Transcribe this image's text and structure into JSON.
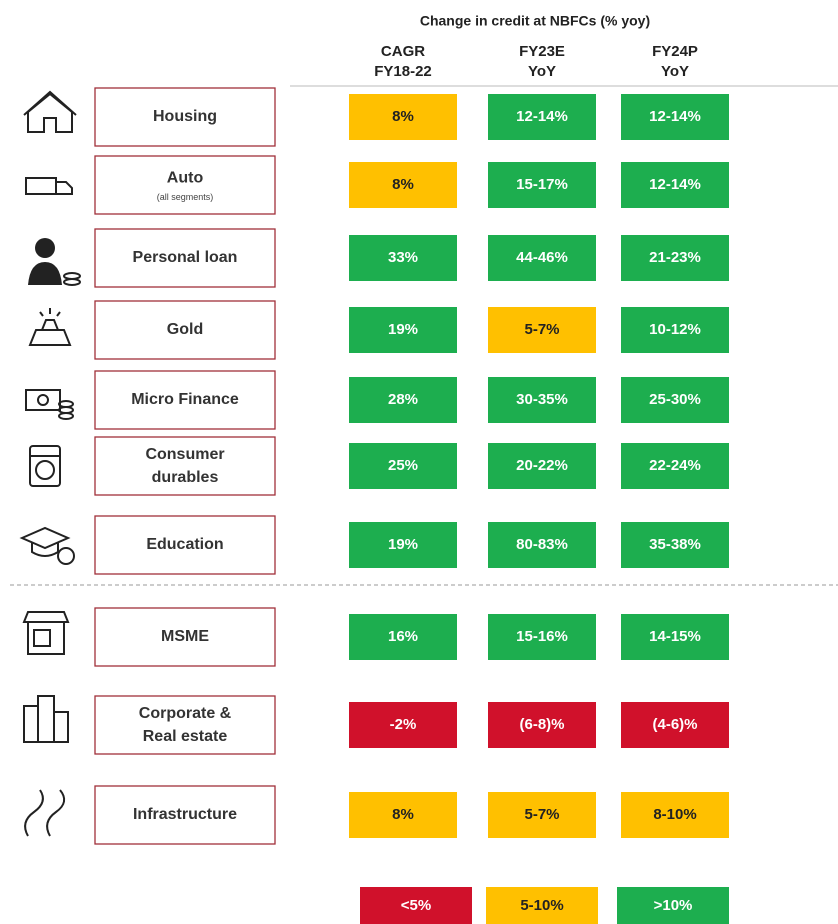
{
  "header": {
    "title": "Change in credit at NBFCs (% yoy)",
    "columns": [
      [
        "CAGR",
        "FY18-22"
      ],
      [
        "FY23E",
        "YoY"
      ],
      [
        "FY24P",
        "YoY"
      ]
    ]
  },
  "rows": [
    {
      "label": [
        "Housing"
      ],
      "cells": [
        {
          "text": "8%",
          "color": "#FFC000"
        },
        {
          "text": "12-14%",
          "color": "#1DAE4F"
        },
        {
          "text": "12-14%",
          "color": "#1DAE4F"
        }
      ]
    },
    {
      "label": [
        "Auto"
      ],
      "sublabel": "(all segments)",
      "cells": [
        {
          "text": "8%",
          "color": "#FFC000"
        },
        {
          "text": "15-17%",
          "color": "#1DAE4F"
        },
        {
          "text": "12-14%",
          "color": "#1DAE4F"
        }
      ]
    },
    {
      "label": [
        "Personal loan"
      ],
      "cells": [
        {
          "text": "33%",
          "color": "#1DAE4F"
        },
        {
          "text": "44-46%",
          "color": "#1DAE4F"
        },
        {
          "text": "21-23%",
          "color": "#1DAE4F"
        }
      ]
    },
    {
      "label": [
        "Gold"
      ],
      "cells": [
        {
          "text": "19%",
          "color": "#1DAE4F"
        },
        {
          "text": "5-7%",
          "color": "#FFC000"
        },
        {
          "text": "10-12%",
          "color": "#1DAE4F"
        }
      ]
    },
    {
      "label": [
        "Micro Finance"
      ],
      "cells": [
        {
          "text": "28%",
          "color": "#1DAE4F"
        },
        {
          "text": "30-35%",
          "color": "#1DAE4F"
        },
        {
          "text": "25-30%",
          "color": "#1DAE4F"
        }
      ]
    },
    {
      "label": [
        "Consumer",
        "durables"
      ],
      "cells": [
        {
          "text": "25%",
          "color": "#1DAE4F"
        },
        {
          "text": "20-22%",
          "color": "#1DAE4F"
        },
        {
          "text": "22-24%",
          "color": "#1DAE4F"
        }
      ]
    },
    {
      "label": [
        "Education"
      ],
      "cells": [
        {
          "text": "19%",
          "color": "#1DAE4F"
        },
        {
          "text": "80-83%",
          "color": "#1DAE4F"
        },
        {
          "text": "35-38%",
          "color": "#1DAE4F"
        }
      ]
    },
    {
      "label": [
        "MSME"
      ],
      "cells": [
        {
          "text": "16%",
          "color": "#1DAE4F"
        },
        {
          "text": "15-16%",
          "color": "#1DAE4F"
        },
        {
          "text": "14-15%",
          "color": "#1DAE4F"
        }
      ]
    },
    {
      "label": [
        "Corporate &",
        "Real estate"
      ],
      "cells": [
        {
          "text": "-2%",
          "color": "#D0112B"
        },
        {
          "text": "(6-8)%",
          "color": "#D0112B"
        },
        {
          "text": "(4-6)%",
          "color": "#D0112B"
        }
      ]
    },
    {
      "label": [
        "Infrastructure"
      ],
      "cells": [
        {
          "text": "8%",
          "color": "#FFC000"
        },
        {
          "text": "5-7%",
          "color": "#FFC000"
        },
        {
          "text": "8-10%",
          "color": "#FFC000"
        }
      ]
    }
  ],
  "legend": [
    {
      "text": "<5%",
      "color": "#D0112B"
    },
    {
      "text": "5-10%",
      "color": "#FFC000"
    },
    {
      "text": ">10%",
      "color": "#1DAE4F"
    }
  ]
}
